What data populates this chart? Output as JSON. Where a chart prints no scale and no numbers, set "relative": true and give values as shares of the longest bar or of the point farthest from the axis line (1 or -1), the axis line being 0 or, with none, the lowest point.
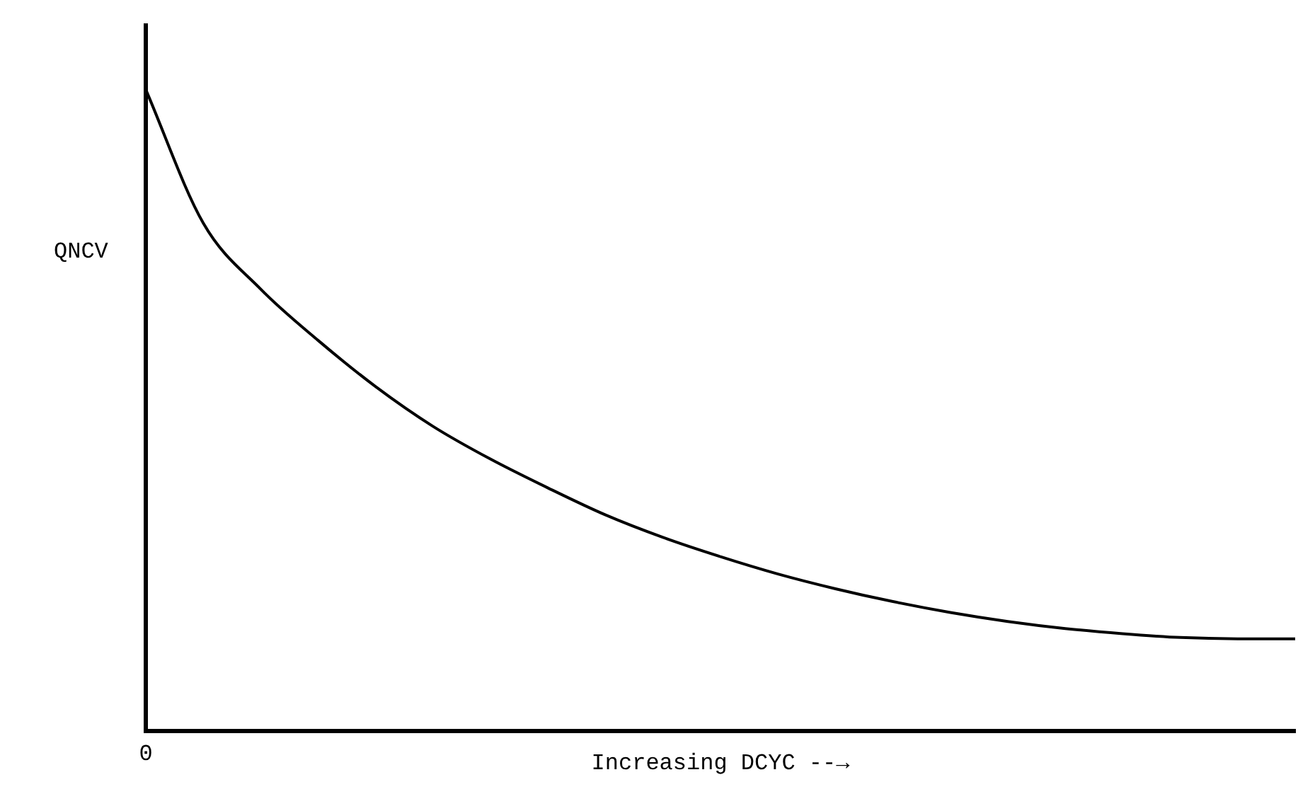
{
  "chart_data": {
    "type": "line",
    "relative": true,
    "xlabel": "Increasing DCYC --→",
    "ylabel": "QNCV",
    "marker": "none",
    "annotations": [
      "0"
    ],
    "categories": [
      null,
      null,
      null,
      null,
      null,
      null,
      null,
      null,
      null,
      null,
      null,
      null,
      null,
      null,
      null,
      null,
      null,
      null,
      null,
      null,
      null
    ],
    "series": [
      {
        "color": "#000000",
        "values": [
          1.0,
          0.792,
          0.689,
          0.609,
          0.537,
          0.475,
          0.424,
          0.379,
          0.337,
          0.302,
          0.272,
          0.245,
          0.222,
          0.202,
          0.185,
          0.171,
          0.16,
          0.152,
          0.146,
          0.144,
          0.144
        ]
      }
    ]
  }
}
